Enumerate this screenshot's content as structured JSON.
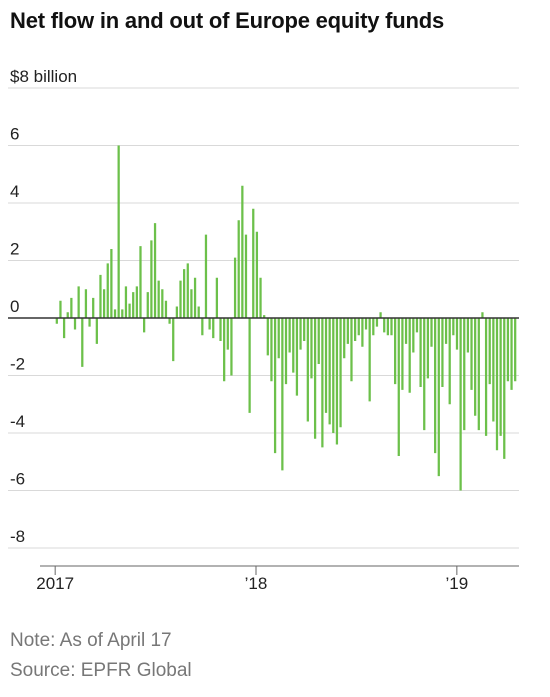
{
  "title": "Net flow in and out of Europe equity funds",
  "note": "Note: As of April 17",
  "source": "Source: EPFR Global",
  "colors": {
    "bar": "#6cc04a",
    "grid": "#d9d9d9",
    "zero_line": "#333333",
    "axis": "#666666",
    "text": "#222222",
    "muted": "#777777"
  },
  "chart_data": {
    "type": "bar",
    "title": "Net flow in and out of Europe equity funds",
    "ylabel": "$8 billion",
    "ylim": [
      -8,
      8
    ],
    "yticks": [
      -8,
      -6,
      -4,
      -2,
      0,
      2,
      4,
      6
    ],
    "ytick_labels": [
      "-8",
      "-6",
      "-4",
      "-2",
      "0",
      "2",
      "4",
      "6"
    ],
    "top_label": "$8 billion",
    "grid": true,
    "x_start": "2017-01-04",
    "x_end": "2019-04-17",
    "x_interval": "weekly",
    "xticks": [
      {
        "date": "2017-01-01",
        "label": "2017"
      },
      {
        "date": "2018-01-01",
        "label": "’18"
      },
      {
        "date": "2019-01-01",
        "label": "’19"
      }
    ],
    "values": [
      -0.2,
      0.6,
      -0.7,
      0.2,
      0.7,
      -0.4,
      1.1,
      -1.7,
      1.0,
      -0.3,
      0.7,
      -0.9,
      1.5,
      1.0,
      1.9,
      2.4,
      0.3,
      6.0,
      0.3,
      1.1,
      0.5,
      0.9,
      1.1,
      2.5,
      -0.5,
      0.9,
      2.7,
      3.3,
      1.3,
      1.0,
      0.6,
      -0.2,
      -1.5,
      0.4,
      1.3,
      1.7,
      1.9,
      1.0,
      1.4,
      0.4,
      -0.6,
      2.9,
      -0.4,
      -0.7,
      1.4,
      -0.8,
      -2.2,
      -1.1,
      -2.0,
      2.1,
      3.4,
      4.6,
      2.9,
      -3.3,
      3.8,
      3.0,
      1.4,
      0.1,
      -1.3,
      -2.2,
      -4.7,
      -1.4,
      -5.3,
      -2.3,
      -1.2,
      -1.9,
      -2.7,
      -1.1,
      -0.8,
      -3.6,
      -2.1,
      -4.2,
      -1.6,
      -4.5,
      -3.3,
      -3.7,
      -4.0,
      -4.4,
      -3.8,
      -1.4,
      -0.9,
      -2.2,
      -0.8,
      -0.6,
      -1.0,
      -0.4,
      -2.9,
      -0.6,
      -0.3,
      0.2,
      -0.5,
      -0.6,
      -0.6,
      -2.3,
      -4.8,
      -2.5,
      -0.9,
      -2.6,
      -1.2,
      -0.5,
      -2.4,
      -3.9,
      -2.1,
      -1.0,
      -4.7,
      -5.5,
      -2.4,
      -0.9,
      -3.0,
      -0.6,
      -1.1,
      -6.0,
      -3.9,
      -1.2,
      -2.5,
      -3.4,
      -3.9,
      0.2,
      -4.1,
      -2.3,
      -3.6,
      -4.6,
      -4.1,
      -4.9,
      -2.2,
      -2.5,
      -2.2
    ]
  }
}
